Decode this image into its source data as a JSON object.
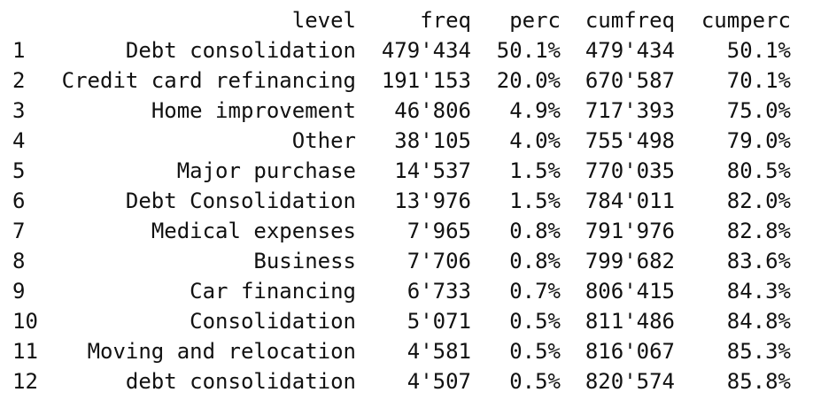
{
  "header": {
    "level": "level",
    "freq": "freq",
    "perc": "perc",
    "cumfreq": "cumfreq",
    "cumperc": "cumperc"
  },
  "rows": [
    {
      "idx": "1",
      "level": "Debt consolidation",
      "freq": "479'434",
      "perc": "50.1%",
      "cumfreq": "479'434",
      "cumperc": "50.1%"
    },
    {
      "idx": "2",
      "level": "Credit card refinancing",
      "freq": "191'153",
      "perc": "20.0%",
      "cumfreq": "670'587",
      "cumperc": "70.1%"
    },
    {
      "idx": "3",
      "level": "Home improvement",
      "freq": "46'806",
      "perc": "4.9%",
      "cumfreq": "717'393",
      "cumperc": "75.0%"
    },
    {
      "idx": "4",
      "level": "Other",
      "freq": "38'105",
      "perc": "4.0%",
      "cumfreq": "755'498",
      "cumperc": "79.0%"
    },
    {
      "idx": "5",
      "level": "Major purchase",
      "freq": "14'537",
      "perc": "1.5%",
      "cumfreq": "770'035",
      "cumperc": "80.5%"
    },
    {
      "idx": "6",
      "level": "Debt Consolidation",
      "freq": "13'976",
      "perc": "1.5%",
      "cumfreq": "784'011",
      "cumperc": "82.0%"
    },
    {
      "idx": "7",
      "level": "Medical expenses",
      "freq": "7'965",
      "perc": "0.8%",
      "cumfreq": "791'976",
      "cumperc": "82.8%"
    },
    {
      "idx": "8",
      "level": "Business",
      "freq": "7'706",
      "perc": "0.8%",
      "cumfreq": "799'682",
      "cumperc": "83.6%"
    },
    {
      "idx": "9",
      "level": "Car financing",
      "freq": "6'733",
      "perc": "0.7%",
      "cumfreq": "806'415",
      "cumperc": "84.3%"
    },
    {
      "idx": "10",
      "level": "Consolidation",
      "freq": "5'071",
      "perc": "0.5%",
      "cumfreq": "811'486",
      "cumperc": "84.8%"
    },
    {
      "idx": "11",
      "level": "Moving and relocation",
      "freq": "4'581",
      "perc": "0.5%",
      "cumfreq": "816'067",
      "cumperc": "85.3%"
    },
    {
      "idx": "12",
      "level": "debt consolidation",
      "freq": "4'507",
      "perc": "0.5%",
      "cumfreq": "820'574",
      "cumperc": "85.8%"
    }
  ]
}
